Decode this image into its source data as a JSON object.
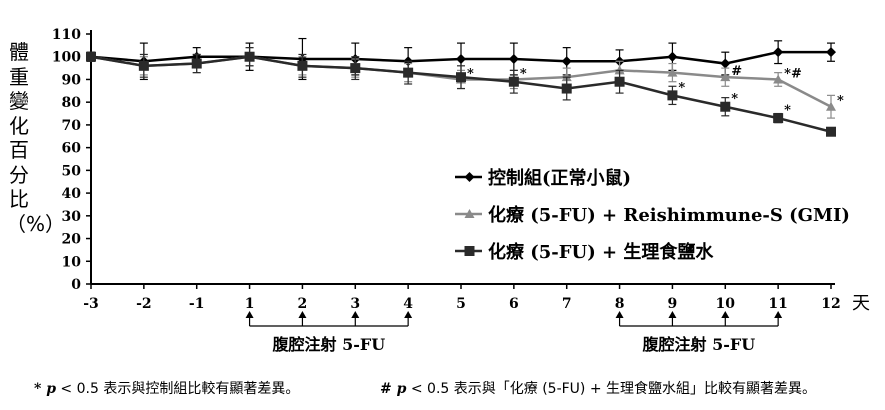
{
  "chart_data": {
    "type": "line",
    "ylabel": "體重變化百分比（%）",
    "xunit": "天",
    "x": [
      -3,
      -2,
      -1,
      1,
      2,
      3,
      4,
      5,
      6,
      7,
      8,
      9,
      10,
      11,
      12
    ],
    "xticks": [
      "-3",
      "-2",
      "-1",
      "1",
      "2",
      "3",
      "4",
      "5",
      "6",
      "7",
      "8",
      "9",
      "10",
      "11",
      "12"
    ],
    "yticks": [
      "0",
      "10",
      "20",
      "30",
      "40",
      "50",
      "60",
      "70",
      "80",
      "90",
      "100",
      "110"
    ],
    "ylim": [
      0,
      110
    ],
    "grid": false,
    "legend_position": "right-center",
    "series": [
      {
        "name": "控制組(正常小鼠)",
        "marker": "diamond",
        "color": "#000000",
        "values": [
          100,
          98,
          100,
          100,
          99,
          99,
          98,
          99,
          99,
          98,
          98,
          100,
          97,
          102,
          102
        ],
        "errors": [
          2,
          8,
          4,
          6,
          9,
          7,
          6,
          7,
          7,
          6,
          5,
          6,
          5,
          5,
          4
        ],
        "annotations": []
      },
      {
        "name": "化療 (5-FU) + Reishimmune-S (GMI)",
        "marker": "triangle",
        "color": "#8a8a8a",
        "values": [
          100,
          96,
          97,
          100,
          96,
          95,
          93,
          90,
          90,
          91,
          94,
          93,
          91,
          90,
          78
        ],
        "errors": [
          2,
          4,
          4,
          4,
          4,
          4,
          4,
          4,
          4,
          4,
          4,
          4,
          4,
          3,
          5
        ],
        "annotations": [
          {
            "x": 5,
            "text": "*"
          },
          {
            "x": 6,
            "text": "*"
          },
          {
            "x": 10,
            "text": "#"
          },
          {
            "x": 11,
            "text": "*#"
          },
          {
            "x": 12,
            "text": "*"
          }
        ]
      },
      {
        "name": "化療 (5-FU) + 生理食鹽水",
        "marker": "square",
        "color": "#2a2a2a",
        "values": [
          100,
          96,
          97,
          100,
          96,
          95,
          93,
          91,
          89,
          86,
          89,
          83,
          78,
          73,
          67
        ],
        "errors": [
          2,
          5,
          4,
          4,
          5,
          5,
          5,
          5,
          5,
          5,
          5,
          4,
          4,
          2,
          1
        ],
        "annotations": [
          {
            "x": 9,
            "text": "*"
          },
          {
            "x": 10,
            "text": "*"
          },
          {
            "x": 11,
            "text": "*"
          }
        ]
      }
    ],
    "injection_periods": [
      {
        "label": "腹腔注射 5-FU",
        "days": [
          1,
          2,
          3,
          4
        ]
      },
      {
        "label": "腹腔注射 5-FU",
        "days": [
          8,
          9,
          10,
          11
        ]
      }
    ]
  },
  "footnotes": {
    "star_symbol": "* p",
    "star_text": " < 0.5 表示與控制組比較有顯著差異。",
    "hash_symbol": "# p",
    "hash_text": " < 0.5 表示與「化療 (5-FU) + 生理食鹽水組」比較有顯著差異。"
  }
}
